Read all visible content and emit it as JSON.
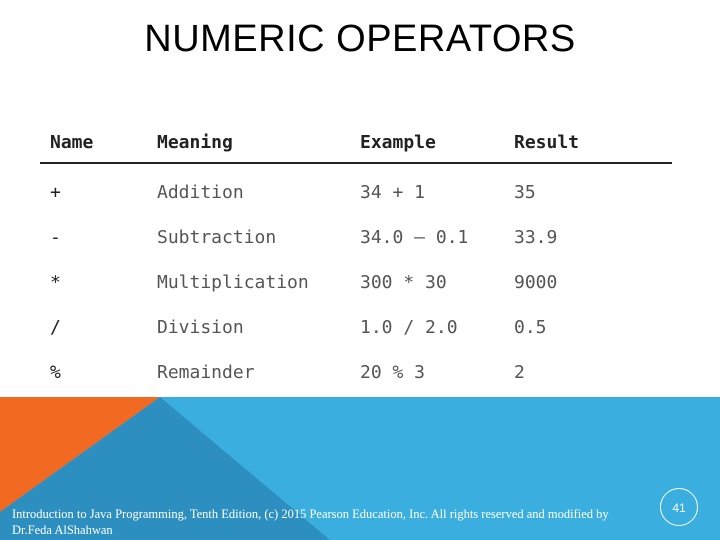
{
  "slide": {
    "title": "NUMERIC OPERATORS",
    "footer_text": "Introduction to Java Programming, Tenth Edition, (c) 2015 Pearson Education, Inc. All rights reserved and modified by Dr.Feda AlShahwan",
    "page_number": "41"
  },
  "table": {
    "headers": [
      "Name",
      "Meaning",
      "Example",
      "Result"
    ],
    "rows": [
      [
        "+",
        "Addition",
        "34 + 1",
        "35"
      ],
      [
        "-",
        "Subtraction",
        "34.0 – 0.1",
        "33.9"
      ],
      [
        "*",
        "Multiplication",
        "300 * 30",
        "9000"
      ],
      [
        "/",
        "Division",
        "1.0 / 2.0",
        "0.5"
      ],
      [
        "%",
        "Remainder",
        "20 % 3",
        "2"
      ]
    ]
  },
  "colors": {
    "accent_blue": "#3aaede",
    "accent_orange": "#f26a22",
    "accent_dark_blue": "#2c8fc0"
  }
}
